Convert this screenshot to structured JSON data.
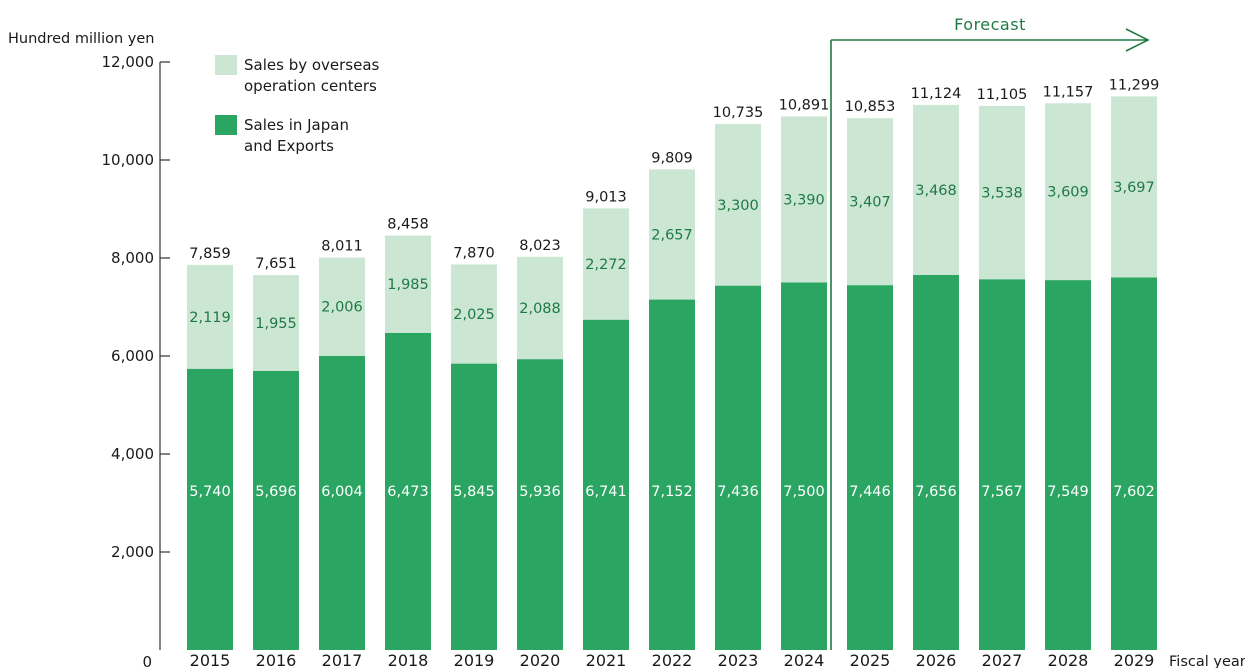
{
  "chart_data": {
    "type": "bar",
    "stacked": true,
    "ylabel": "Hundred million yen",
    "xlabel": "Fiscal year",
    "ylim": [
      0,
      12000
    ],
    "yticks": [
      "0",
      "2,000",
      "4,000",
      "6,000",
      "8,000",
      "10,000",
      "12,000"
    ],
    "categories": [
      "2015",
      "2016",
      "2017",
      "2018",
      "2019",
      "2020",
      "2021",
      "2022",
      "2023",
      "2024",
      "2025",
      "2026",
      "2027",
      "2028",
      "2029"
    ],
    "series": [
      {
        "name": "Sales in Japan and Exports",
        "legend_lines": [
          "Sales in Japan",
          "and Exports"
        ],
        "color": "#2aa562",
        "values": [
          5740,
          5696,
          6004,
          6473,
          5845,
          5936,
          6741,
          7152,
          7436,
          7500,
          7446,
          7656,
          7567,
          7549,
          7602
        ],
        "labels": [
          "5,740",
          "5,696",
          "6,004",
          "6,473",
          "5,845",
          "5,936",
          "6,741",
          "7,152",
          "7,436",
          "7,500",
          "7,446",
          "7,656",
          "7,567",
          "7,549",
          "7,602"
        ]
      },
      {
        "name": "Sales by overseas operation centers",
        "legend_lines": [
          "Sales by overseas",
          "operation centers"
        ],
        "color": "#cce6d4",
        "values": [
          2119,
          1955,
          2006,
          1985,
          2025,
          2088,
          2272,
          2657,
          3300,
          3390,
          3407,
          3468,
          3538,
          3609,
          3697
        ],
        "labels": [
          "2,119",
          "1,955",
          "2,006",
          "1,985",
          "2,025",
          "2,088",
          "2,272",
          "2,657",
          "3,300",
          "3,390",
          "3,407",
          "3,468",
          "3,538",
          "3,609",
          "3,697"
        ]
      }
    ],
    "totals": [
      "7,859",
      "7,651",
      "8,011",
      "8,458",
      "7,870",
      "8,023",
      "9,013",
      "9,809",
      "10,735",
      "10,891",
      "10,853",
      "11,124",
      "11,105",
      "11,157",
      "11,299"
    ],
    "forecast": {
      "label": "Forecast",
      "from": "2025"
    },
    "legend": "top-left",
    "grid": false
  }
}
